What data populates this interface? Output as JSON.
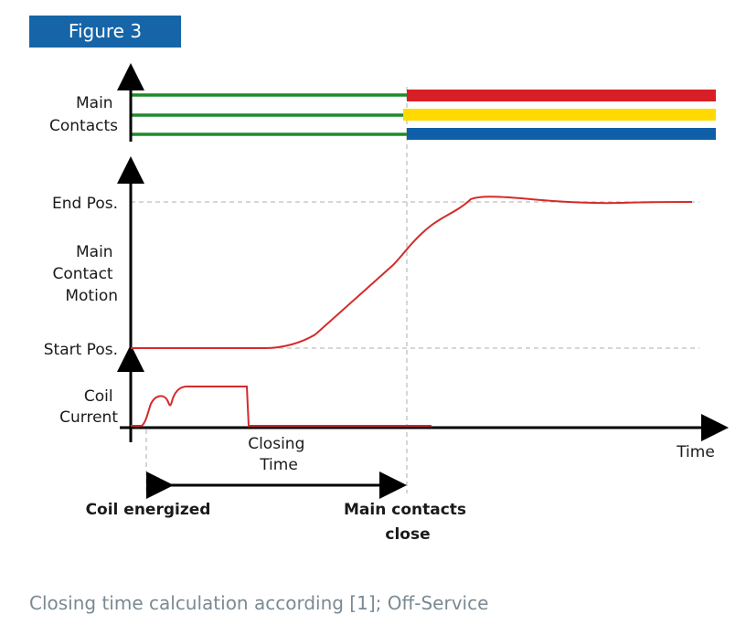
{
  "figure_label": "Figure 3",
  "labels": {
    "main_contacts_line1": "Main",
    "main_contacts_line2": "Contacts",
    "end_pos": "End Pos.",
    "motion_line1": "Main",
    "motion_line2": "Contact",
    "motion_line3": "Motion",
    "start_pos": "Start Pos.",
    "coil_line1": "Coil",
    "coil_line2": "Current",
    "closing_line1": "Closing",
    "closing_line2": "Time",
    "time_axis": "Time",
    "coil_energized": "Coil energized",
    "contacts_close_line1": "Main contacts",
    "contacts_close_line2": "close"
  },
  "colors": {
    "open_contact": "#1f8a2a",
    "phase_1": "#d91f26",
    "phase_2": "#ffd900",
    "phase_3": "#0f5fa8",
    "curve": "#d42a2a",
    "guide": "#c8c8c8"
  },
  "caption": "Closing time calculation according [1]; Off-Service"
}
